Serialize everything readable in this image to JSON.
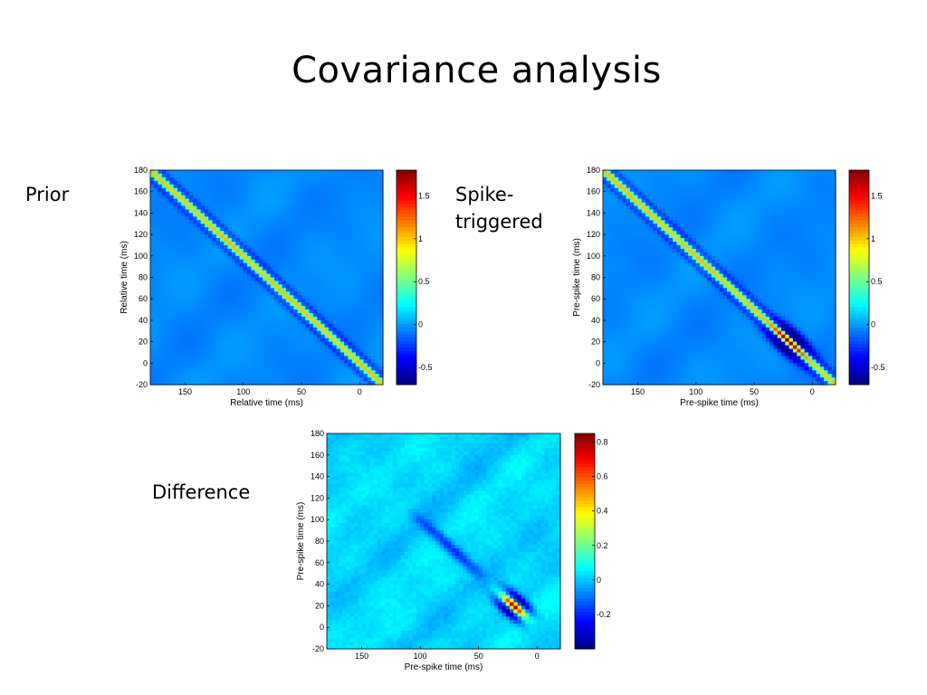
{
  "slide": {
    "title": "Covariance analysis",
    "labels": {
      "prior": "Prior",
      "spike_triggered": "Spike-triggered",
      "difference": "Difference"
    }
  },
  "colormap": "jet",
  "chart_data": [
    {
      "type": "heatmap",
      "name": "prior",
      "xlabel": "Relative time (ms)",
      "ylabel": "Relative time (ms)",
      "xlim": [
        180,
        -20
      ],
      "ylim": [
        -20,
        180
      ],
      "xticks": [
        150,
        100,
        50,
        0
      ],
      "yticks": [
        180,
        160,
        140,
        120,
        100,
        80,
        60,
        40,
        20,
        0,
        -20
      ],
      "clim": [
        -0.7,
        1.8
      ],
      "cticks": [
        -0.5,
        0,
        0.5,
        1,
        1.5
      ],
      "diagonal_peak": 1.0,
      "diagonal_width_ms": 6,
      "background": -0.05
    },
    {
      "type": "heatmap",
      "name": "spike-triggered",
      "xlabel": "Pre-spike time (ms)",
      "ylabel": "Pre-spike time (ms)",
      "xlim": [
        180,
        -20
      ],
      "ylim": [
        -20,
        180
      ],
      "xticks": [
        150,
        100,
        50,
        0
      ],
      "yticks": [
        180,
        160,
        140,
        120,
        100,
        80,
        60,
        40,
        20,
        0,
        -20
      ],
      "clim": [
        -0.7,
        1.8
      ],
      "cticks": [
        -0.5,
        0,
        0.5,
        1,
        1.5
      ],
      "diagonal_peak": 1.0,
      "diagonal_width_ms": 6,
      "background": -0.05,
      "hotspot_center_ms": 20,
      "hotspot_peak": 1.8
    },
    {
      "type": "heatmap",
      "name": "difference",
      "xlabel": "Pre-spike time (ms)",
      "ylabel": "Pre-spike time (ms)",
      "xlim": [
        180,
        -20
      ],
      "ylim": [
        -20,
        180
      ],
      "xticks": [
        150,
        100,
        50,
        0
      ],
      "yticks": [
        180,
        160,
        140,
        120,
        100,
        80,
        60,
        40,
        20,
        0,
        -20
      ],
      "clim": [
        -0.4,
        0.85
      ],
      "cticks": [
        -0.2,
        0,
        0.2,
        0.4,
        0.6,
        0.8
      ],
      "hotspot_center_ms": 20,
      "hotspot_peak": 0.85,
      "negative_band_range_ms": [
        40,
        110
      ],
      "negative_band_min": -0.22
    }
  ]
}
